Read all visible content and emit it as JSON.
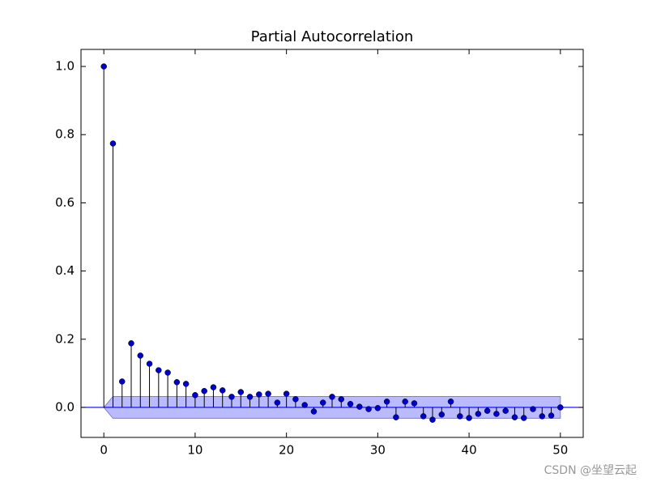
{
  "chart_data": {
    "type": "stem",
    "title": "Partial Autocorrelation",
    "x": [
      0,
      1,
      2,
      3,
      4,
      5,
      6,
      7,
      8,
      9,
      10,
      11,
      12,
      13,
      14,
      15,
      16,
      17,
      18,
      19,
      20,
      21,
      22,
      23,
      24,
      25,
      26,
      27,
      28,
      29,
      30,
      31,
      32,
      33,
      34,
      35,
      36,
      37,
      38,
      39,
      40,
      41,
      42,
      43,
      44,
      45,
      46,
      47,
      48,
      49,
      50
    ],
    "values": [
      1.0,
      0.774,
      0.076,
      0.188,
      0.152,
      0.128,
      0.109,
      0.102,
      0.074,
      0.069,
      0.036,
      0.048,
      0.059,
      0.05,
      0.031,
      0.045,
      0.031,
      0.038,
      0.04,
      0.014,
      0.04,
      0.024,
      0.007,
      -0.012,
      0.014,
      0.031,
      0.024,
      0.01,
      0.002,
      -0.005,
      -0.002,
      0.017,
      -0.029,
      0.017,
      0.012,
      -0.026,
      -0.036,
      -0.021,
      0.017,
      -0.026,
      -0.031,
      -0.019,
      -0.01,
      -0.019,
      -0.01,
      -0.029,
      -0.031,
      -0.005,
      -0.026,
      -0.024,
      0.0
    ],
    "color": "#0000cc",
    "stem_color": "#000000",
    "band": {
      "x": [
        0,
        1,
        50
      ],
      "upper": [
        0,
        0.032,
        0.032
      ],
      "lower": [
        0,
        -0.032,
        -0.032
      ],
      "color": "#b3b3ff"
    },
    "hline": 0,
    "hline_color": "#0000ff",
    "xlim": [
      -2.5,
      52.5
    ],
    "xticks": [
      0,
      10,
      20,
      30,
      40,
      50
    ],
    "ylim": [
      -0.088,
      1.05
    ],
    "yticks": [
      {
        "value": 0,
        "label": "0.0"
      },
      {
        "value": 0.2,
        "label": "0.2"
      },
      {
        "value": 0.4,
        "label": "0.4"
      },
      {
        "value": 0.6,
        "label": "0.6"
      },
      {
        "value": 0.8,
        "label": "0.8"
      },
      {
        "value": 1.0,
        "label": "1.0"
      }
    ],
    "watermark": "CSDN @坐望云起"
  }
}
